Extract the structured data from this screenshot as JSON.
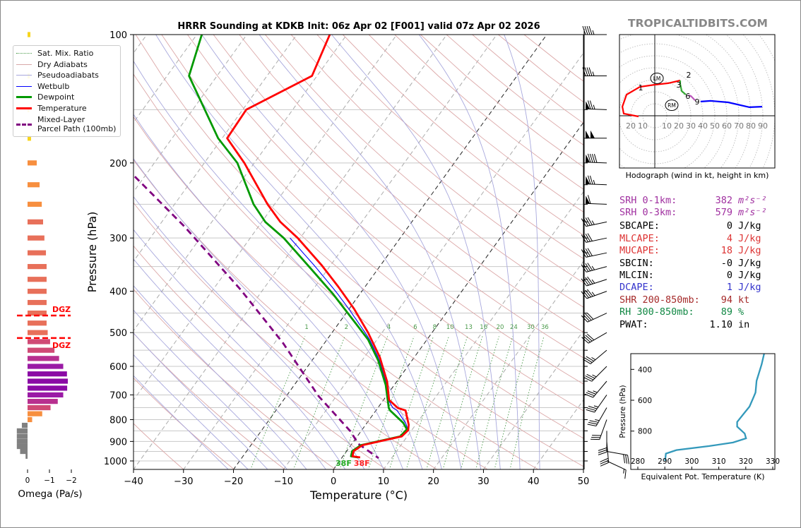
{
  "header": {
    "title": "HRRR Sounding at KDKB Init: 06z Apr 02 [F001] valid 07z Apr 02 2026",
    "brand": "TROPICALTIDBITS.COM"
  },
  "legend": [
    {
      "label": "Sat. Mix. Ratio",
      "color": "#4a9a4a",
      "style": "dotted",
      "width": 1
    },
    {
      "label": "Dry Adiabats",
      "color": "#d8a8a8",
      "style": "solid",
      "width": 1
    },
    {
      "label": "Pseudoadiabats",
      "color": "#a8a8dd",
      "style": "solid",
      "width": 1
    },
    {
      "label": "Wetbulb",
      "color": "#0000ff",
      "style": "solid",
      "width": 1.5
    },
    {
      "label": "Dewpoint",
      "color": "#009900",
      "style": "solid",
      "width": 3
    },
    {
      "label": "Temperature",
      "color": "#ff0000",
      "style": "solid",
      "width": 3
    },
    {
      "label": "Mixed-Layer\nParcel Path (100mb)",
      "color": "#800080",
      "style": "dashed",
      "width": 3
    }
  ],
  "chart_data": {
    "type": "line",
    "title": "HRRR Sounding at KDKB Init: 06z Apr 02 [F001] valid 07z Apr 02 2026",
    "xlabel": "Temperature (°C)",
    "ylabel": "Pressure (hPa)",
    "xlim": [
      -40,
      50
    ],
    "ylim": [
      1050,
      100
    ],
    "xticks": [
      -40,
      -30,
      -20,
      -10,
      0,
      10,
      20,
      30,
      40,
      50
    ],
    "xtick_labels": [
      "−40",
      "−30",
      "−20",
      "−10",
      "0",
      "10",
      "20",
      "30",
      "40",
      "50"
    ],
    "yticks": [
      100,
      200,
      300,
      400,
      500,
      600,
      700,
      800,
      900,
      1000
    ],
    "ytick_labels": [
      "100",
      "200",
      "300",
      "400",
      "500",
      "600",
      "700",
      "800",
      "900",
      "1000"
    ],
    "skew": "45-degree skew-T log-p",
    "temperature": {
      "p": [
        100,
        125,
        150,
        175,
        200,
        250,
        275,
        300,
        348,
        390,
        440,
        500,
        571,
        652,
        719,
        751,
        761,
        822,
        847,
        876,
        918,
        948,
        975,
        981
      ],
      "t": [
        -63.4,
        -61.0,
        -69.3,
        -69.0,
        -62.0,
        -51.4,
        -46.3,
        -40.5,
        -31.7,
        -25.4,
        -19.0,
        -12.8,
        -6.9,
        -1.9,
        1.1,
        4.0,
        5.9,
        8.6,
        9.3,
        8.9,
        2.3,
        1.4,
        1.9,
        3.6
      ]
    },
    "dewpoint": {
      "p": [
        100,
        125,
        175,
        200,
        250,
        275,
        300,
        355,
        405,
        463,
        519,
        582,
        664,
        751,
        761,
        815,
        843,
        876,
        918,
        948,
        975,
        981
      ],
      "t": [
        -89,
        -85.6,
        -70.8,
        -63.4,
        -54.2,
        -49.3,
        -43.3,
        -33.3,
        -25.5,
        -18.1,
        -11.8,
        -6.7,
        -1.7,
        2.2,
        2.8,
        7.3,
        8.9,
        8.6,
        2.0,
        1.1,
        1.6,
        3.2
      ]
    },
    "parcel": {
      "p": [
        180,
        214,
        282,
        397,
        529,
        704,
        852,
        912,
        985
      ],
      "t": [
        -92,
        -82.3,
        -64.8,
        -44.4,
        -28.3,
        -13.6,
        -2.1,
        1.3,
        7.4
      ]
    },
    "mixing_ratio_lines": [
      1,
      2,
      4,
      6,
      8,
      10,
      13,
      16,
      20,
      24,
      30,
      36
    ],
    "surface_temp_label": "38F",
    "surface_dewpoint_label": "38F",
    "winds": [
      {
        "p": 100,
        "dir": 270,
        "kt": 45
      },
      {
        "p": 125,
        "dir": 270,
        "kt": 45
      },
      {
        "p": 150,
        "dir": 272,
        "kt": 75
      },
      {
        "p": 175,
        "dir": 270,
        "kt": 100
      },
      {
        "p": 200,
        "dir": 272,
        "kt": 90
      },
      {
        "p": 225,
        "dir": 272,
        "kt": 75
      },
      {
        "p": 250,
        "dir": 272,
        "kt": 60
      },
      {
        "p": 275,
        "dir": 258,
        "kt": 45
      },
      {
        "p": 300,
        "dir": 258,
        "kt": 40
      },
      {
        "p": 325,
        "dir": 258,
        "kt": 40
      },
      {
        "p": 350,
        "dir": 255,
        "kt": 45
      },
      {
        "p": 375,
        "dir": 252,
        "kt": 45
      },
      {
        "p": 400,
        "dir": 250,
        "kt": 45
      },
      {
        "p": 450,
        "dir": 245,
        "kt": 40
      },
      {
        "p": 500,
        "dir": 240,
        "kt": 40
      },
      {
        "p": 550,
        "dir": 230,
        "kt": 35
      },
      {
        "p": 600,
        "dir": 225,
        "kt": 35
      },
      {
        "p": 650,
        "dir": 220,
        "kt": 35
      },
      {
        "p": 700,
        "dir": 215,
        "kt": 35
      },
      {
        "p": 750,
        "dir": 210,
        "kt": 35
      },
      {
        "p": 800,
        "dir": 200,
        "kt": 30
      },
      {
        "p": 850,
        "dir": 180,
        "kt": 30
      },
      {
        "p": 900,
        "dir": 175,
        "kt": 30
      },
      {
        "p": 950,
        "dir": 100,
        "kt": 30
      },
      {
        "p": 1000,
        "dir": 115,
        "kt": 15
      }
    ],
    "omega": {
      "xlabel": "Omega (Pa/s)",
      "ticks": [
        0,
        -1,
        -2
      ],
      "tick_labels": [
        "0",
        "−1",
        "−2"
      ],
      "p": [
        100,
        125,
        150,
        175,
        200,
        225,
        250,
        275,
        300,
        325,
        350,
        375,
        400,
        425,
        450,
        475,
        500,
        525,
        550,
        575,
        600,
        625,
        650,
        675,
        700,
        725,
        750,
        775,
        800,
        825,
        850,
        875,
        900,
        925,
        950,
        975
      ],
      "values": [
        -0.13,
        -0.1,
        -0.08,
        -0.16,
        -0.42,
        -0.55,
        -0.65,
        -0.71,
        -0.77,
        -0.84,
        -0.87,
        -0.87,
        -0.87,
        -0.87,
        -0.87,
        -0.87,
        -0.92,
        -1.03,
        -1.23,
        -1.44,
        -1.63,
        -1.8,
        -1.84,
        -1.81,
        -1.63,
        -1.38,
        -1.05,
        -0.67,
        -0.21,
        0.26,
        0.49,
        0.49,
        0.49,
        0.49,
        0.34,
        0.09
      ]
    },
    "dgz": {
      "top_p": 456,
      "bottom_p": 515,
      "label": "DGZ",
      "color": "#ff0000"
    },
    "hodograph": {
      "caption": "Hodograph (wind in kt, height in km)",
      "ring_step_kt": 10,
      "ring_labels": [
        {
          "u": -20,
          "text": "20"
        },
        {
          "u": -10,
          "text": "10"
        },
        {
          "u": 10,
          "text": "10"
        },
        {
          "u": 20,
          "text": "20"
        },
        {
          "u": 30,
          "text": "30"
        },
        {
          "u": 40,
          "text": "40"
        },
        {
          "u": 50,
          "text": "50"
        },
        {
          "u": 60,
          "text": "60"
        },
        {
          "u": 70,
          "text": "70"
        },
        {
          "u": 80,
          "text": "80"
        },
        {
          "u": 90,
          "text": "90"
        }
      ],
      "segments": [
        {
          "layer": "0-3 km",
          "color": "#ff0000",
          "u": [
            -13.5,
            -25.9,
            -27,
            -23.5,
            -12.4,
            0,
            11.2,
            21.2
          ],
          "v": [
            -0.6,
            1.8,
            7.6,
            17.6,
            24.1,
            25.9,
            27.1,
            29.4
          ]
        },
        {
          "layer": "3-6 km",
          "color": "#33aa33",
          "u": [
            21.2,
            21.2,
            22.4,
            25.9
          ],
          "v": [
            29.4,
            26.5,
            20.6,
            17.6
          ]
        },
        {
          "layer": "6-9 km",
          "color": "#bb55bb",
          "u": [
            28,
            30,
            33.5
          ],
          "v": [
            17,
            16.5,
            12.9
          ]
        },
        {
          "layer": "9+ km",
          "color": "#0000ff",
          "u": [
            38.2,
            46.5,
            61.2,
            78.8,
            89.4
          ],
          "v": [
            11.8,
            12.4,
            11.2,
            7.1,
            7.6
          ]
        }
      ],
      "height_labels": [
        {
          "text": "1",
          "u": -11.8,
          "v": 23.5
        },
        {
          "text": "2",
          "u": 25.3,
          "v": 31.2
        },
        {
          "text": "3",
          "u": 21.8,
          "v": 27.6
        },
        {
          "text": "6",
          "u": 27.6,
          "v": 16.5
        },
        {
          "text": "9",
          "u": 35.3,
          "v": 11.8
        }
      ],
      "storm_motions": [
        {
          "text": "LM",
          "u": 1.8,
          "v": 31.2
        },
        {
          "text": "RM",
          "u": 14.1,
          "v": 8.8
        }
      ]
    },
    "theta_e": {
      "xlabel": "Equivalent Pot. Temperature (K)",
      "ylabel": "Pressure (hPa)",
      "xlim": [
        278,
        331
      ],
      "ylim": [
        1048,
        298
      ],
      "xticks": [
        280,
        290,
        300,
        310,
        320,
        330
      ],
      "xtick_labels": [
        "280",
        "290",
        "300",
        "310",
        "320",
        "330"
      ],
      "yticks": [
        400,
        600,
        800
      ],
      "ytick_labels": [
        "400",
        "600",
        "800"
      ],
      "color": "#3399bb",
      "p": [
        298,
        367,
        474,
        550,
        580,
        641,
        684,
        741,
        771,
        816,
        847,
        874,
        897,
        923,
        946,
        992
      ],
      "theta_e": [
        326.8,
        325.9,
        324.0,
        323.6,
        322.9,
        321.4,
        319.4,
        316.8,
        316.8,
        319.6,
        320.1,
        315.3,
        306.5,
        294.3,
        290.4,
        290.1
      ]
    }
  },
  "stats": [
    {
      "label": "SRH 0-1km:",
      "value": "382",
      "unit": "m²s⁻²",
      "color": "#a030a0",
      "italic": true
    },
    {
      "label": "SRH 0-3km:",
      "value": "579",
      "unit": "m²s⁻²",
      "color": "#a030a0",
      "italic": true
    },
    {
      "label": "SBCAPE:",
      "value": "0",
      "unit": "J/kg",
      "color": "#000000"
    },
    {
      "label": "MLCAPE:",
      "value": "4",
      "unit": "J/kg",
      "color": "#dd3333"
    },
    {
      "label": "MUCAPE:",
      "value": "18",
      "unit": "J/kg",
      "color": "#dd3333"
    },
    {
      "label": "SBCIN:",
      "value": "-0",
      "unit": "J/kg",
      "color": "#000000"
    },
    {
      "label": "MLCIN:",
      "value": "0",
      "unit": "J/kg",
      "color": "#000000"
    },
    {
      "label": "DCAPE:",
      "value": "1",
      "unit": "J/kg",
      "color": "#3333cc"
    },
    {
      "label": "SHR 200-850mb:",
      "value": "94",
      "unit": "kt",
      "color": "#a52a2a"
    },
    {
      "label": "RH 300-850mb:",
      "value": "89",
      "unit": "%",
      "color": "#118844"
    },
    {
      "label": "PWAT:",
      "value": "1.10",
      "unit": "in",
      "color": "#000000"
    }
  ]
}
